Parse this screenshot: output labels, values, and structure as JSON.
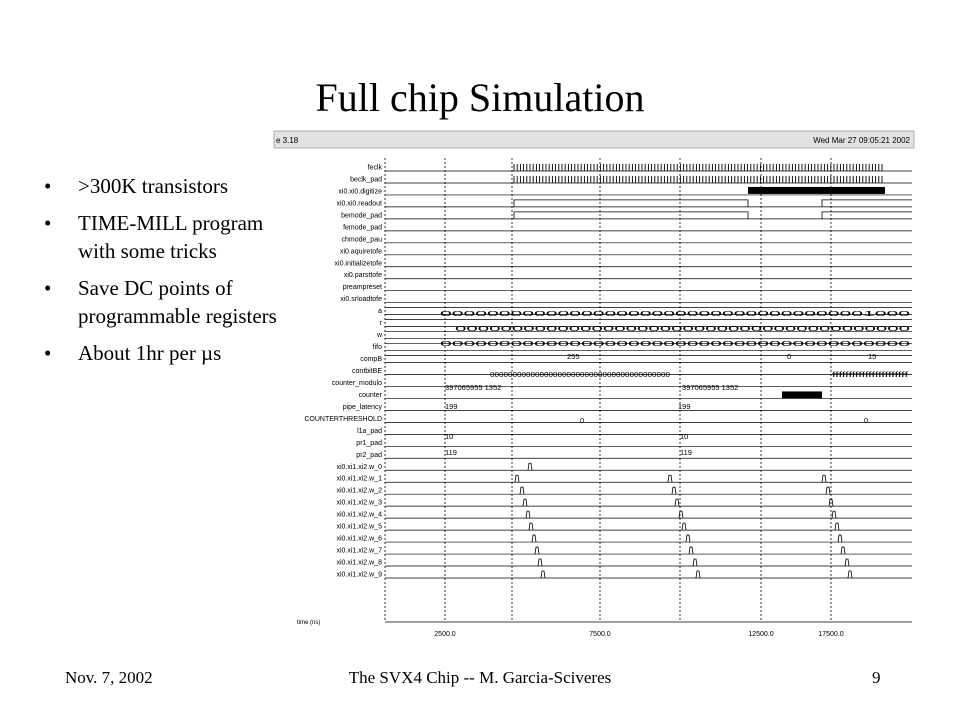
{
  "slide": {
    "title": "Full chip Simulation",
    "bullets": [
      ">300K transistors",
      "TIME-MILL program with some tricks",
      "Save DC points of programmable registers",
      "About 1hr per µs"
    ],
    "footer": {
      "date": "Nov. 7, 2002",
      "center": "The SVX4 Chip -- M. Garcia-Sciveres",
      "page": "9"
    }
  },
  "waveform": {
    "header_left": "e 3.18",
    "header_right": "Wed Mar 27 09:05:21 2002",
    "time_label": "time (ns)",
    "x_ticks": [
      "2500.0",
      "7500.0",
      "12500.0",
      "17500.0"
    ],
    "signals": [
      "feclk",
      "beclk_pad",
      "xi0.xi0.digitize",
      "xi0.xi0.readout",
      "bemode_pad",
      "femode_pad",
      "chmode_pau",
      "xi0.aquiretofe",
      "xi0.initializetofe",
      "xi0.parsttofe",
      "preampreset",
      "xi0.srloadtofe",
      "a",
      "r",
      "w",
      "fifo",
      "compB",
      "contbitBE",
      "counter_modulo",
      "counter",
      "pipe_latency",
      "COUNTERTHRESHOLD",
      "l1a_pad",
      "pr1_pad",
      "pr2_pad",
      "xi0.xi1.xi2.w_0",
      "xi0.xi1.xi2.w_1",
      "xi0.xi1.xi2.w_2",
      "xi0.xi1.xi2.w_3",
      "xi0.xi1.xi2.w_4",
      "xi0.xi1.xi2.w_5",
      "xi0.xi1.xi2.w_6",
      "xi0.xi1.xi2.w_7",
      "xi0.xi1.xi2.w_8",
      "xi0.xi1.xi2.w_9"
    ],
    "bus_values": {
      "a": "0000000000000000000000000000000000001000",
      "r": "0000000000000000000000000000000000000000",
      "w": "0000000000000000000000000000000000000000",
      "fifo": [
        "255",
        "0",
        "15"
      ],
      "compB": [
        "0000000000000000000000000000000000000000",
        "fffffffffffffffffffffff"
      ],
      "contbitBE": [
        "397065955 1352",
        "397065955 1352"
      ],
      "counter_modulo": [
        "199",
        "199"
      ],
      "counter": [
        "0",
        "0"
      ],
      "pipe_latency": [
        "10",
        "10"
      ],
      "COUNTERTHRESHOLD": [
        "119",
        "119"
      ]
    }
  }
}
